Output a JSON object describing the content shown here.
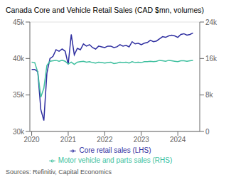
{
  "chart_data": {
    "type": "line",
    "title": "Canada Core and Vehicle Retail Sales (CAD $mn, volumes)",
    "annotations": [
      "Sources: Refinitiv, Capital Economics"
    ],
    "x": [
      2020,
      2020.0833,
      2020.1667,
      2020.25,
      2020.3333,
      2020.4167,
      2020.5,
      2020.5833,
      2020.6667,
      2020.75,
      2020.8333,
      2020.9167,
      2021,
      2021.0833,
      2021.1667,
      2021.25,
      2021.3333,
      2021.4167,
      2021.5,
      2021.5833,
      2021.6667,
      2021.75,
      2021.8333,
      2021.9167,
      2022,
      2022.0833,
      2022.1667,
      2022.25,
      2022.3333,
      2022.4167,
      2022.5,
      2022.5833,
      2022.6667,
      2022.75,
      2022.8333,
      2022.9167,
      2023,
      2023.0833,
      2023.1667,
      2023.25,
      2023.3333,
      2023.4167,
      2023.5,
      2023.5833,
      2023.6667,
      2023.75,
      2023.8333,
      2023.9167,
      2024,
      2024.0833,
      2024.1667,
      2024.25,
      2024.3333,
      2024.4167
    ],
    "series": [
      {
        "name": "Core retail sales (LHS)",
        "color": "#2d2d9f",
        "values": [
          38500,
          38500,
          38200,
          33000,
          31500,
          38000,
          40000,
          40300,
          41200,
          41000,
          41300,
          41000,
          39200,
          43300,
          40500,
          41400,
          41200,
          42000,
          41700,
          41900,
          41500,
          41300,
          41700,
          41600,
          41500,
          41700,
          41700,
          41500,
          41600,
          41900,
          41700,
          41800,
          41600,
          42300,
          42000,
          42100,
          41900,
          42100,
          42200,
          42500,
          42300,
          42400,
          42700,
          43000,
          42900,
          43100,
          43200,
          43100,
          42900,
          43300,
          43400,
          43200,
          43300,
          43500
        ]
      },
      {
        "name": "Motor vehicle and parts sales (RHS)",
        "color": "#3dbf9e",
        "axis": "y2",
        "values": [
          15200,
          15100,
          13000,
          7500,
          9500,
          14500,
          15400,
          15500,
          15600,
          15400,
          15600,
          15400,
          14800,
          15200,
          14700,
          15200,
          15300,
          15400,
          15200,
          15300,
          15100,
          15000,
          15200,
          15100,
          15000,
          15100,
          15200,
          14900,
          15000,
          15200,
          15100,
          15200,
          15000,
          15300,
          15100,
          15200,
          15100,
          15300,
          15300,
          15400,
          15300,
          15400,
          15600,
          15500,
          15400,
          15600,
          15500,
          15400,
          15300,
          15500,
          15500,
          15400,
          15500,
          15600
        ]
      }
    ],
    "xlim": [
      2019.95,
      2024.6
    ],
    "xticks": [
      2020,
      2021,
      2022,
      2023,
      2024
    ],
    "ylim": [
      30000,
      45000
    ],
    "yticks": [
      {
        "value": 30000,
        "label": "30k"
      },
      {
        "value": 35000,
        "label": "35k"
      },
      {
        "value": 40000,
        "label": "40k"
      },
      {
        "value": 45000,
        "label": "45k"
      }
    ],
    "y2lim": [
      0,
      24000
    ],
    "y2ticks": [
      0,
      {
        "value": 8000,
        "label": "8k"
      },
      {
        "value": 16000,
        "label": "16k"
      },
      {
        "value": 24000,
        "label": "24k"
      }
    ],
    "grid": true,
    "legend": "bottom"
  }
}
